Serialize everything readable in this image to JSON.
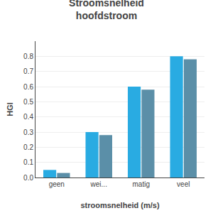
{
  "chart_data": {
    "type": "bar",
    "title": "Stroomsnelheid\nhoofdstroom",
    "xlabel": "stroomsnelheid (m/s)",
    "ylabel": "HGI",
    "categories": [
      "geen",
      "wei...",
      "matig",
      "veel"
    ],
    "series": [
      {
        "color": "#29ABE2",
        "values": [
          0.05,
          0.3,
          0.6,
          0.8
        ]
      },
      {
        "color": "#5B8FA8",
        "values": [
          0.03,
          0.28,
          0.58,
          0.78
        ]
      }
    ],
    "ylim": [
      0,
      0.9
    ],
    "yticks": [
      {
        "value": 0.0,
        "label": "0.0"
      },
      0.1,
      0.2,
      0.3,
      0.4,
      0.5,
      0.6,
      0.7,
      0.8
    ],
    "grid": true
  }
}
